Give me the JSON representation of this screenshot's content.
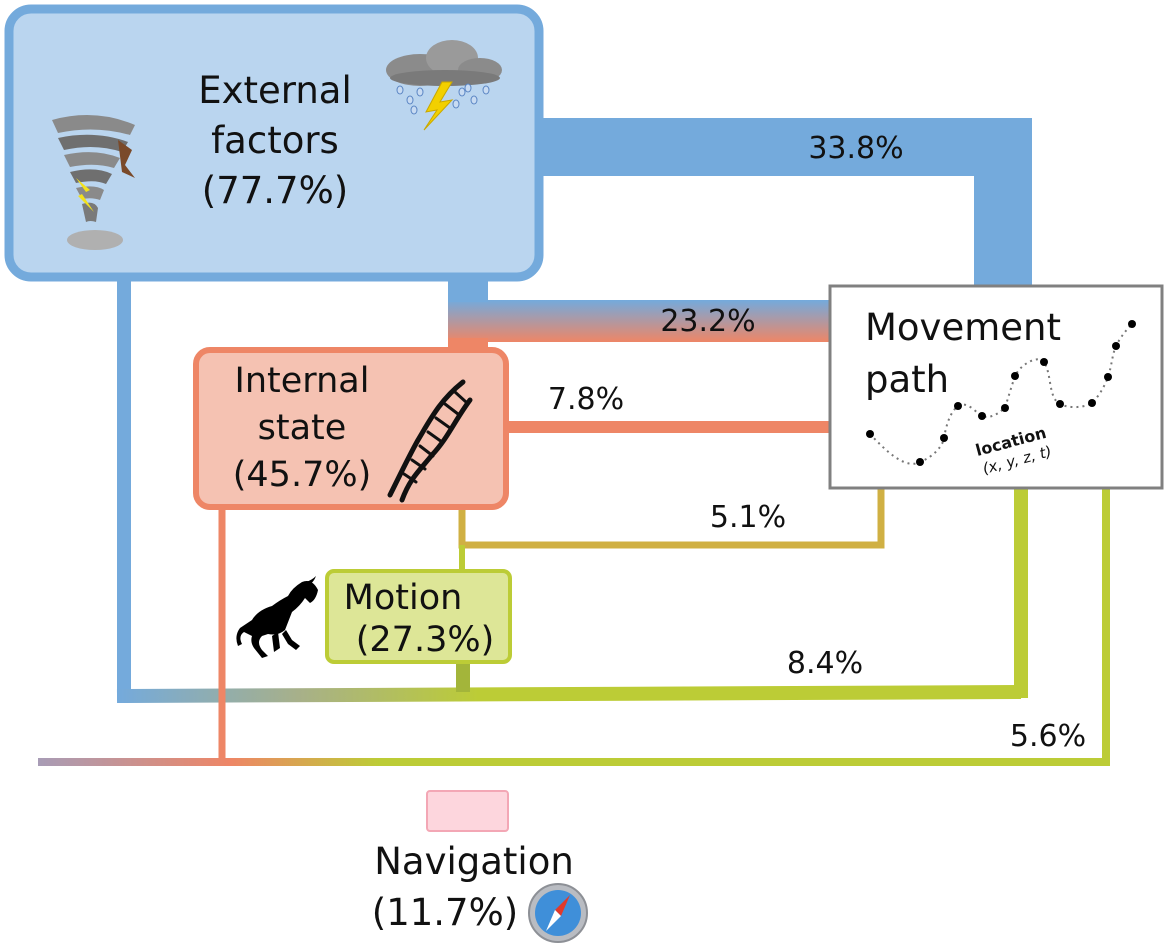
{
  "nodes": {
    "external": {
      "line1": "External",
      "line2": "factors",
      "line3": "(77.7%)",
      "fill": "#bad5ef",
      "stroke": "#74aadc"
    },
    "internal": {
      "line1": "Internal",
      "line2": "state",
      "line3": "(45.7%)",
      "fill": "#f5c2b2",
      "stroke": "#ee8666"
    },
    "motion": {
      "line1": "Motion",
      "line2": "(27.3%)",
      "fill": "#dde697",
      "stroke": "#bccc36"
    },
    "movement": {
      "line1": "Movement",
      "line2": "path",
      "location_label": "location",
      "location_coords": "(x, y, z, t)",
      "fill": "#ffffff",
      "stroke": "#808080"
    },
    "navigation": {
      "line1": "Navigation",
      "line2": "(11.7%)",
      "fill": "#fdd6dd",
      "stroke": "#f3a7b5"
    }
  },
  "flows": [
    {
      "label": "33.8%",
      "from": "external",
      "to": "movement"
    },
    {
      "label": "23.2%",
      "from": "external + internal",
      "to": "movement"
    },
    {
      "label": "7.8%",
      "from": "internal",
      "to": "movement"
    },
    {
      "label": "5.1%",
      "from": "motion",
      "to": "movement"
    },
    {
      "label": "8.4%",
      "from": "external + internal + motion",
      "to": "movement"
    },
    {
      "label": "5.6%",
      "from": "external + internal + motion",
      "to": "movement"
    }
  ],
  "colors": {
    "external": "#74aadc",
    "internal": "#ee8666",
    "motion": "#bccc36"
  },
  "icons": [
    "tornado-icon",
    "storm-cloud-icon",
    "dna-icon",
    "horse-icon",
    "compass-icon"
  ]
}
